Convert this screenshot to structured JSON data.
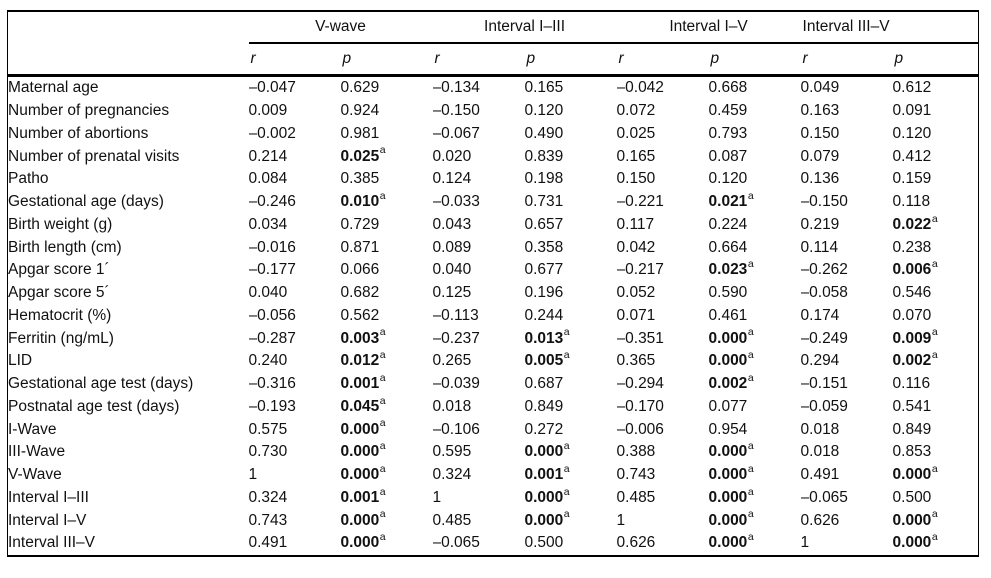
{
  "table": {
    "groups": [
      "V-wave",
      "Interval I–III",
      "Interval I–V",
      "Interval III–V"
    ],
    "subheaders": [
      "r",
      "p",
      "r",
      "p",
      "r",
      "p",
      "r",
      "p"
    ],
    "footnote_marker": "a",
    "rows": [
      {
        "label": "Maternal age",
        "cells": [
          {
            "t": "–0.047"
          },
          {
            "t": "0.629"
          },
          {
            "t": "–0.134"
          },
          {
            "t": "0.165"
          },
          {
            "t": "–0.042"
          },
          {
            "t": "0.668"
          },
          {
            "t": "0.049"
          },
          {
            "t": "0.612"
          }
        ]
      },
      {
        "label": "Number of pregnancies",
        "cells": [
          {
            "t": "0.009"
          },
          {
            "t": "0.924"
          },
          {
            "t": "–0.150"
          },
          {
            "t": "0.120"
          },
          {
            "t": "0.072"
          },
          {
            "t": "0.459"
          },
          {
            "t": "0.163"
          },
          {
            "t": "0.091"
          }
        ]
      },
      {
        "label": "Number of abortions",
        "cells": [
          {
            "t": "–0.002"
          },
          {
            "t": "0.981"
          },
          {
            "t": "–0.067"
          },
          {
            "t": "0.490"
          },
          {
            "t": "0.025"
          },
          {
            "t": "0.793"
          },
          {
            "t": "0.150"
          },
          {
            "t": "0.120"
          }
        ]
      },
      {
        "label": "Number of prenatal visits",
        "cells": [
          {
            "t": "0.214"
          },
          {
            "t": "0.025",
            "sig": true
          },
          {
            "t": "0.020"
          },
          {
            "t": "0.839"
          },
          {
            "t": "0.165"
          },
          {
            "t": "0.087"
          },
          {
            "t": "0.079"
          },
          {
            "t": "0.412"
          }
        ]
      },
      {
        "label": "Patho",
        "cells": [
          {
            "t": "0.084"
          },
          {
            "t": "0.385"
          },
          {
            "t": "0.124"
          },
          {
            "t": "0.198"
          },
          {
            "t": "0.150"
          },
          {
            "t": "0.120"
          },
          {
            "t": "0.136"
          },
          {
            "t": "0.159"
          }
        ]
      },
      {
        "label": "Gestational age (days)",
        "cells": [
          {
            "t": "–0.246"
          },
          {
            "t": "0.010",
            "sig": true
          },
          {
            "t": "–0.033"
          },
          {
            "t": "0.731"
          },
          {
            "t": "–0.221"
          },
          {
            "t": "0.021",
            "sig": true
          },
          {
            "t": "–0.150"
          },
          {
            "t": "0.118"
          }
        ]
      },
      {
        "label": "Birth weight (g)",
        "cells": [
          {
            "t": "0.034"
          },
          {
            "t": "0.729"
          },
          {
            "t": "0.043"
          },
          {
            "t": "0.657"
          },
          {
            "t": "0.117"
          },
          {
            "t": "0.224"
          },
          {
            "t": "0.219"
          },
          {
            "t": "0.022",
            "sig": true
          }
        ]
      },
      {
        "label": "Birth length (cm)",
        "cells": [
          {
            "t": "–0.016"
          },
          {
            "t": "0.871"
          },
          {
            "t": "0.089"
          },
          {
            "t": "0.358"
          },
          {
            "t": "0.042"
          },
          {
            "t": "0.664"
          },
          {
            "t": "0.114"
          },
          {
            "t": "0.238"
          }
        ]
      },
      {
        "label": "Apgar score 1´",
        "cells": [
          {
            "t": "–0.177"
          },
          {
            "t": "0.066"
          },
          {
            "t": "0.040"
          },
          {
            "t": "0.677"
          },
          {
            "t": "–0.217"
          },
          {
            "t": "0.023",
            "sig": true
          },
          {
            "t": "–0.262"
          },
          {
            "t": "0.006",
            "sig": true
          }
        ]
      },
      {
        "label": "Apgar score 5´",
        "cells": [
          {
            "t": "0.040"
          },
          {
            "t": "0.682"
          },
          {
            "t": "0.125"
          },
          {
            "t": "0.196"
          },
          {
            "t": "0.052"
          },
          {
            "t": "0.590"
          },
          {
            "t": "–0.058"
          },
          {
            "t": "0.546"
          }
        ]
      },
      {
        "label": "Hematocrit (%)",
        "cells": [
          {
            "t": "–0.056"
          },
          {
            "t": "0.562"
          },
          {
            "t": "–0.113"
          },
          {
            "t": "0.244"
          },
          {
            "t": "0.071"
          },
          {
            "t": "0.461"
          },
          {
            "t": "0.174"
          },
          {
            "t": "0.070"
          }
        ]
      },
      {
        "label": "Ferritin (ng/mL)",
        "cells": [
          {
            "t": "–0.287"
          },
          {
            "t": "0.003",
            "sig": true
          },
          {
            "t": "–0.237"
          },
          {
            "t": "0.013",
            "sig": true
          },
          {
            "t": "–0.351"
          },
          {
            "t": "0.000",
            "sig": true
          },
          {
            "t": "–0.249"
          },
          {
            "t": "0.009",
            "sig": true
          }
        ]
      },
      {
        "label": "LID",
        "cells": [
          {
            "t": "0.240"
          },
          {
            "t": "0.012",
            "sig": true
          },
          {
            "t": "0.265"
          },
          {
            "t": "0.005",
            "sig": true
          },
          {
            "t": "0.365"
          },
          {
            "t": "0.000",
            "sig": true
          },
          {
            "t": "0.294"
          },
          {
            "t": "0.002",
            "sig": true
          }
        ]
      },
      {
        "label": "Gestational age test (days)",
        "cells": [
          {
            "t": "–0.316"
          },
          {
            "t": "0.001",
            "sig": true
          },
          {
            "t": "–0.039"
          },
          {
            "t": "0.687"
          },
          {
            "t": "–0.294"
          },
          {
            "t": "0.002",
            "sig": true
          },
          {
            "t": "–0.151"
          },
          {
            "t": "0.116"
          }
        ]
      },
      {
        "label": "Postnatal age test (days)",
        "cells": [
          {
            "t": "–0.193"
          },
          {
            "t": "0.045",
            "sig": true
          },
          {
            "t": "0.018"
          },
          {
            "t": "0.849"
          },
          {
            "t": "–0.170"
          },
          {
            "t": "0.077"
          },
          {
            "t": "–0.059"
          },
          {
            "t": "0.541"
          }
        ]
      },
      {
        "label": "I-Wave",
        "cells": [
          {
            "t": "0.575"
          },
          {
            "t": "0.000",
            "sig": true
          },
          {
            "t": "–0.106"
          },
          {
            "t": "0.272"
          },
          {
            "t": "–0.006"
          },
          {
            "t": "0.954"
          },
          {
            "t": "0.018"
          },
          {
            "t": "0.849"
          }
        ]
      },
      {
        "label": "III-Wave",
        "cells": [
          {
            "t": "0.730"
          },
          {
            "t": "0.000",
            "sig": true
          },
          {
            "t": "0.595"
          },
          {
            "t": "0.000",
            "sig": true
          },
          {
            "t": "0.388"
          },
          {
            "t": "0.000",
            "sig": true
          },
          {
            "t": "0.018"
          },
          {
            "t": "0.853"
          }
        ]
      },
      {
        "label": "V-Wave",
        "cells": [
          {
            "t": "1"
          },
          {
            "t": "0.000",
            "sig": true
          },
          {
            "t": "0.324"
          },
          {
            "t": "0.001",
            "sig": true
          },
          {
            "t": "0.743"
          },
          {
            "t": "0.000",
            "sig": true
          },
          {
            "t": "0.491"
          },
          {
            "t": "0.000",
            "sig": true
          }
        ]
      },
      {
        "label": "Interval I–III",
        "cells": [
          {
            "t": "0.324"
          },
          {
            "t": "0.001",
            "sig": true
          },
          {
            "t": "1"
          },
          {
            "t": "0.000",
            "sig": true
          },
          {
            "t": "0.485"
          },
          {
            "t": "0.000",
            "sig": true
          },
          {
            "t": "–0.065"
          },
          {
            "t": "0.500"
          }
        ]
      },
      {
        "label": "Interval I–V",
        "cells": [
          {
            "t": "0.743"
          },
          {
            "t": "0.000",
            "sig": true
          },
          {
            "t": "0.485"
          },
          {
            "t": "0.000",
            "sig": true
          },
          {
            "t": "1"
          },
          {
            "t": "0.000",
            "sig": true
          },
          {
            "t": "0.626"
          },
          {
            "t": "0.000",
            "sig": true
          }
        ]
      },
      {
        "label": "Interval III–V",
        "cells": [
          {
            "t": "0.491"
          },
          {
            "t": "0.000",
            "sig": true
          },
          {
            "t": "–0.065"
          },
          {
            "t": "0.500"
          },
          {
            "t": "0.626"
          },
          {
            "t": "0.000",
            "sig": true
          },
          {
            "t": "1"
          },
          {
            "t": "0.000",
            "sig": true
          }
        ]
      }
    ]
  }
}
